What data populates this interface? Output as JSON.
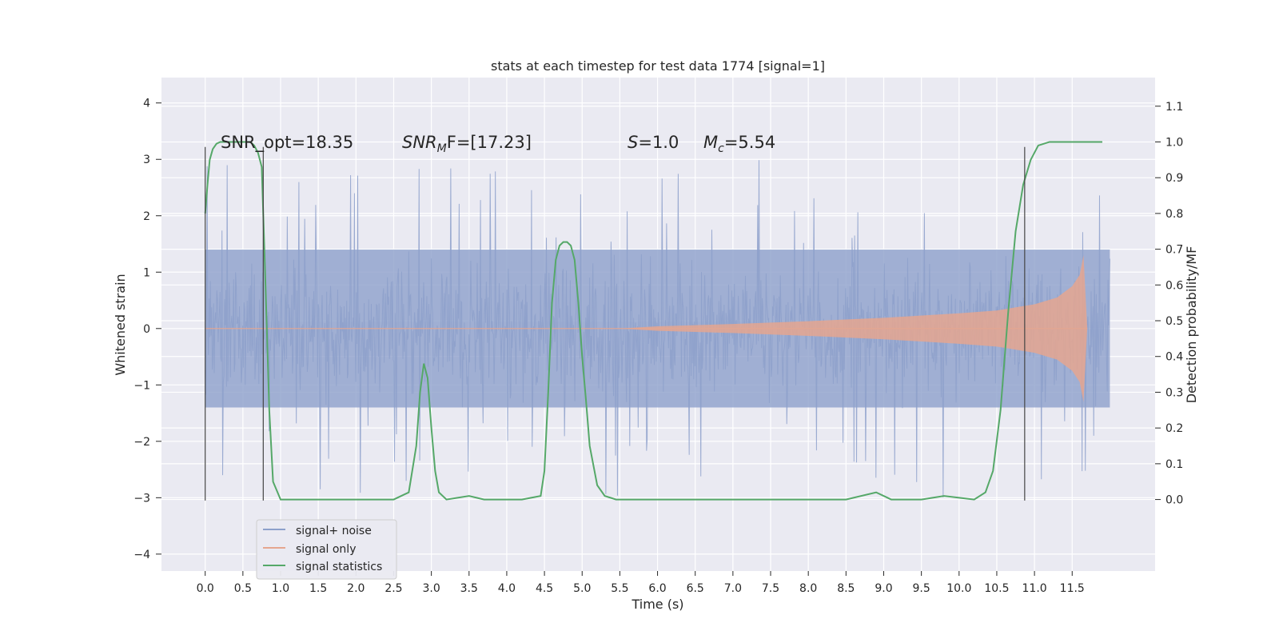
{
  "chart_data": {
    "type": "line",
    "title": "stats at each timestep for test data 1774 [signal=1]",
    "xlabel": "Time (s)",
    "ylabel_left": "Whitened strain",
    "ylabel_right": "Detection probability/MF",
    "xlim": [
      -0.58,
      12.6
    ],
    "ylim_left": [
      -4.3,
      4.45
    ],
    "ylim_right": [
      -0.2,
      1.18
    ],
    "grid": true,
    "legend_placement": "lower-left",
    "x_ticks": [
      "0.0",
      "0.5",
      "1.0",
      "1.5",
      "2.0",
      "2.5",
      "3.0",
      "3.5",
      "4.0",
      "4.5",
      "5.0",
      "5.5",
      "6.0",
      "6.5",
      "7.0",
      "7.5",
      "8.0",
      "8.5",
      "9.0",
      "9.5",
      "10.0",
      "10.5",
      "11.0",
      "11.5"
    ],
    "y_ticks_left": [
      "4",
      "3",
      "2",
      "1",
      "0",
      "−1",
      "−2",
      "−3",
      "−4"
    ],
    "y_ticks_right": [
      "1.1",
      "1.0",
      "0.9",
      "0.8",
      "0.7",
      "0.6",
      "0.5",
      "0.4",
      "0.3",
      "0.2",
      "0.1",
      "0.0"
    ],
    "annotations": {
      "snr_opt": "SNR_opt=18.35",
      "snr_mf_prefix": "SNR",
      "snr_mf_sub": "M",
      "snr_mf_suffix": "F=[17.23]",
      "s_symbol": "S",
      "s_value": "=1.0",
      "mc_symbol": "M",
      "mc_sub": "c",
      "mc_value": "=5.54"
    },
    "vertical_lines_x": [
      0.0,
      0.77,
      10.87
    ],
    "vertical_lines_ylim": [
      -3.05,
      3.22
    ],
    "series": [
      {
        "name": "signal+ noise",
        "color": "#8da0cb",
        "x_range": [
          0.0,
          12.0
        ],
        "envelope_outer": [
          -3.0,
          3.1
        ],
        "envelope_inner": [
          -1.4,
          1.4
        ]
      },
      {
        "name": "signal only",
        "color": "#e5a68f",
        "x": [
          0.0,
          5.5,
          6.0,
          7.0,
          8.0,
          9.0,
          10.0,
          10.5,
          11.0,
          11.3,
          11.5,
          11.6,
          11.65,
          11.7
        ],
        "amplitude": [
          0.0,
          0.0,
          0.04,
          0.08,
          0.13,
          0.19,
          0.27,
          0.32,
          0.43,
          0.55,
          0.75,
          0.95,
          1.3,
          0.0
        ]
      },
      {
        "name": "signal statistics",
        "color": "#55a868",
        "x": [
          0.0,
          0.03,
          0.06,
          0.1,
          0.15,
          0.2,
          0.3,
          0.4,
          0.5,
          0.6,
          0.65,
          0.7,
          0.75,
          0.8,
          0.85,
          0.9,
          1.0,
          1.5,
          2.0,
          2.5,
          2.7,
          2.8,
          2.85,
          2.9,
          2.95,
          3.0,
          3.05,
          3.1,
          3.2,
          3.5,
          3.7,
          4.2,
          4.45,
          4.5,
          4.55,
          4.6,
          4.65,
          4.7,
          4.75,
          4.8,
          4.85,
          4.9,
          4.95,
          5.0,
          5.05,
          5.1,
          5.2,
          5.3,
          5.45,
          5.7,
          8.5,
          8.9,
          9.1,
          9.5,
          9.8,
          10.2,
          10.35,
          10.45,
          10.55,
          10.65,
          10.75,
          10.85,
          10.95,
          11.05,
          11.2,
          11.5,
          11.9
        ],
        "values": [
          0.8,
          0.88,
          0.95,
          0.98,
          0.995,
          1.0,
          1.0,
          1.0,
          1.0,
          1.0,
          0.99,
          0.97,
          0.93,
          0.6,
          0.25,
          0.05,
          0.0,
          0.0,
          0.0,
          0.0,
          0.02,
          0.15,
          0.3,
          0.38,
          0.34,
          0.2,
          0.08,
          0.02,
          0.0,
          0.01,
          0.0,
          0.0,
          0.01,
          0.08,
          0.3,
          0.55,
          0.67,
          0.71,
          0.72,
          0.72,
          0.71,
          0.67,
          0.55,
          0.4,
          0.28,
          0.15,
          0.04,
          0.01,
          0.0,
          0.0,
          0.0,
          0.02,
          0.0,
          0.0,
          0.01,
          0.0,
          0.02,
          0.08,
          0.25,
          0.52,
          0.75,
          0.88,
          0.95,
          0.99,
          1.0,
          1.0,
          1.0
        ]
      }
    ]
  }
}
